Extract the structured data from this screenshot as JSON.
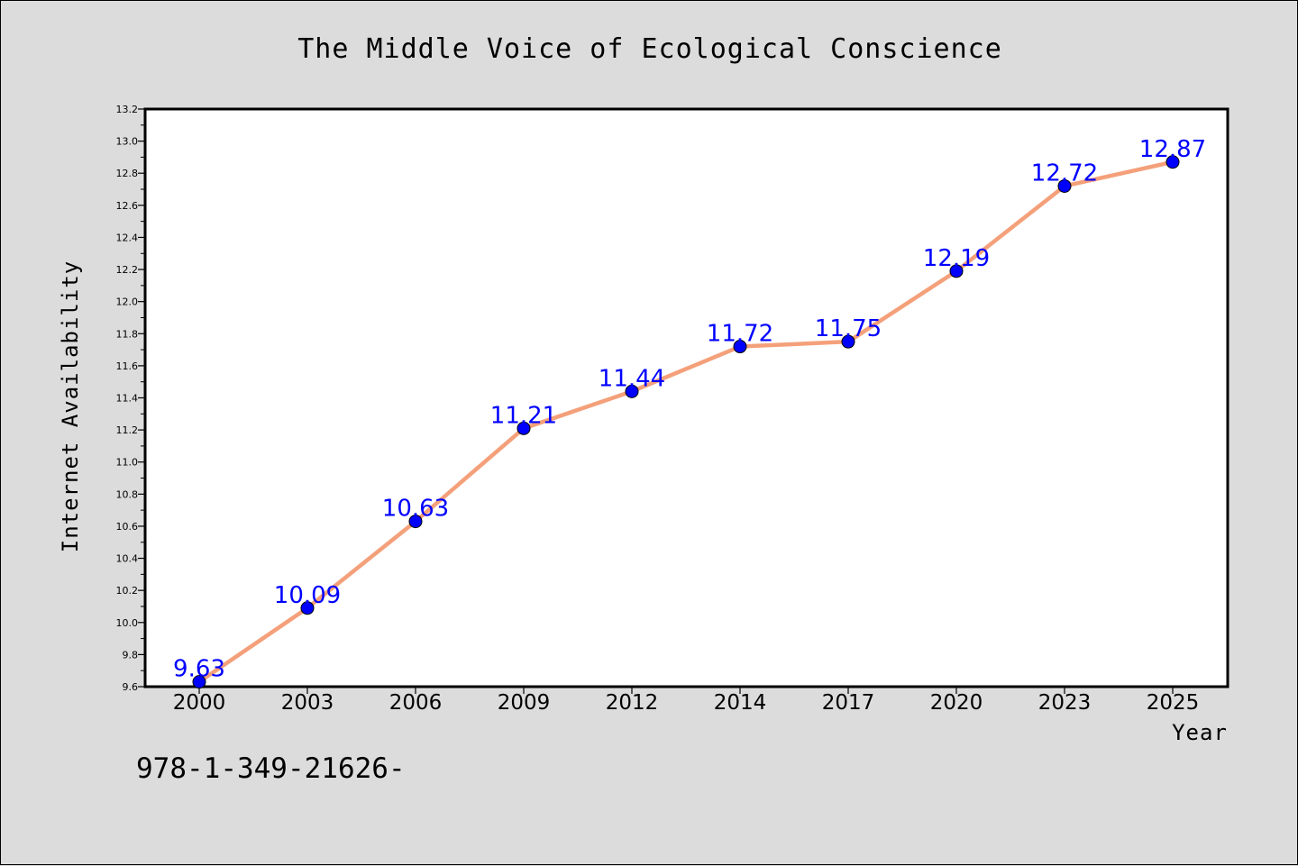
{
  "chart_data": {
    "type": "line",
    "title": "The Middle Voice of Ecological Conscience",
    "xlabel": "Year",
    "ylabel": "Internet Availability",
    "categories": [
      "2000",
      "2003",
      "2006",
      "2009",
      "2012",
      "2014",
      "2017",
      "2020",
      "2023",
      "2025"
    ],
    "series": [
      {
        "values": [
          9.63,
          10.09,
          10.63,
          11.21,
          11.44,
          11.72,
          11.75,
          12.19,
          12.72,
          12.87
        ]
      }
    ],
    "data_labels": [
      "9.63",
      "10.09",
      "10.63",
      "11.21",
      "11.44",
      "11.72",
      "11.75",
      "12.19",
      "12.72",
      "12.87"
    ],
    "ylim": [
      9.6,
      13.2
    ],
    "yticks": [
      "9.6",
      "9.8",
      "10.0",
      "10.2",
      "10.4",
      "10.6",
      "10.8",
      "11.0",
      "11.2",
      "11.4",
      "11.6",
      "11.8",
      "12.0",
      "12.2",
      "12.4",
      "12.6",
      "12.8",
      "13.0",
      "13.2"
    ],
    "grid": false,
    "legend": "none",
    "colors": {
      "line": "#f4a07a",
      "marker": "#0000ff",
      "label": "#0000ff",
      "background": "#dcdcdc",
      "plot_background": "#ffffff"
    }
  },
  "footer": {
    "isbn": "978-1-349-21626-"
  }
}
